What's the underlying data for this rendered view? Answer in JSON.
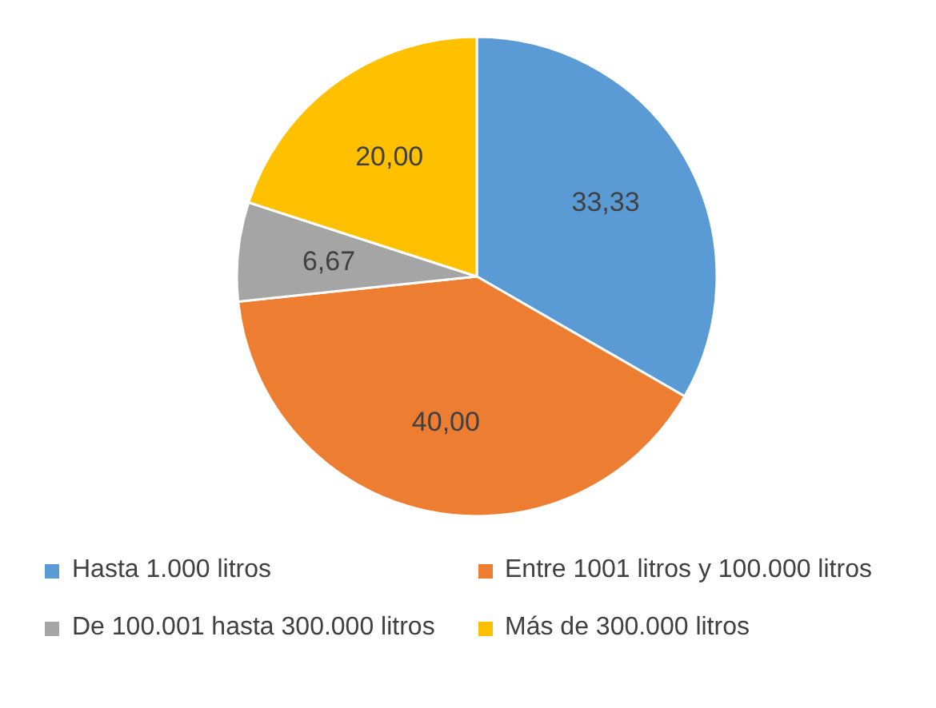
{
  "chart_data": {
    "type": "pie",
    "categories": [
      "Hasta 1.000 litros",
      "Entre 1001 litros y 100.000 litros",
      "De 100.001 hasta 300.000 litros",
      "Más de 300.000 litros"
    ],
    "values": [
      33.33,
      40.0,
      6.67,
      20.0
    ],
    "colors": [
      "#5b9bd5",
      "#ed7d31",
      "#a5a5a5",
      "#ffc000"
    ],
    "value_labels": [
      "33,33",
      "40,00",
      "6,67",
      "20,00"
    ],
    "legend": "bottom"
  }
}
